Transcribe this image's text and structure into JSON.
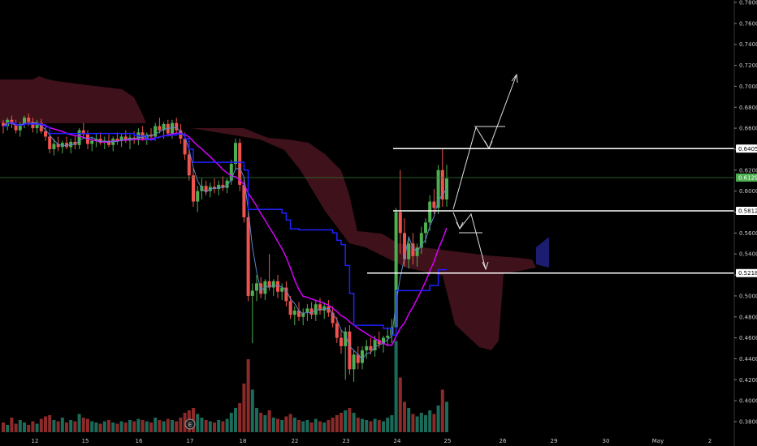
{
  "chart_data": {
    "type": "candlestick",
    "y_axis": {
      "ticks": [
        "0.7800",
        "0.7600",
        "0.7400",
        "0.7200",
        "0.7000",
        "0.6800",
        "0.6600",
        "0.6400",
        "0.6200",
        "0.6000",
        "0.5800",
        "0.5600",
        "0.5400",
        "0.5200",
        "0.5000",
        "0.4800",
        "0.4600",
        "0.4400",
        "0.4200",
        "0.4000",
        "0.3800"
      ],
      "ylim": [
        0.373,
        0.785
      ]
    },
    "x_axis": {
      "ticks": [
        "12",
        "15",
        "16",
        "17",
        "18",
        "22",
        "23",
        "24",
        "25",
        "26",
        "29",
        "30",
        "May",
        "2"
      ]
    },
    "price_tags": [
      {
        "label": "0.6405",
        "value": 0.6405,
        "bg": "#ffffff",
        "fg": "#000000"
      },
      {
        "label": "0.6129",
        "value": 0.6129,
        "bg": "#4caf50",
        "fg": "#ffffff"
      },
      {
        "label": "0.5812",
        "value": 0.5812,
        "bg": "#ffffff",
        "fg": "#000000"
      },
      {
        "label": "0.5218",
        "value": 0.5218,
        "bg": "#ffffff",
        "fg": "#000000"
      }
    ],
    "horizontal_levels": [
      0.6405,
      0.5812,
      0.5218
    ],
    "current_price": 0.6129,
    "event_marker": "E",
    "candles": [
      [
        0.665,
        0.668,
        0.655,
        0.662,
        0.008
      ],
      [
        0.662,
        0.67,
        0.658,
        0.668,
        0.006
      ],
      [
        0.668,
        0.672,
        0.66,
        0.664,
        0.012
      ],
      [
        0.664,
        0.668,
        0.655,
        0.658,
        0.007
      ],
      [
        0.658,
        0.666,
        0.652,
        0.664,
        0.01
      ],
      [
        0.664,
        0.672,
        0.66,
        0.67,
        0.008
      ],
      [
        0.67,
        0.674,
        0.662,
        0.666,
        0.006
      ],
      [
        0.666,
        0.67,
        0.656,
        0.66,
        0.009
      ],
      [
        0.66,
        0.668,
        0.655,
        0.665,
        0.007
      ],
      [
        0.665,
        0.669,
        0.655,
        0.657,
        0.011
      ],
      [
        0.657,
        0.662,
        0.648,
        0.652,
        0.013
      ],
      [
        0.652,
        0.656,
        0.636,
        0.64,
        0.014
      ],
      [
        0.64,
        0.65,
        0.634,
        0.645,
        0.01
      ],
      [
        0.645,
        0.652,
        0.638,
        0.642,
        0.009
      ],
      [
        0.642,
        0.648,
        0.636,
        0.646,
        0.012
      ],
      [
        0.646,
        0.652,
        0.64,
        0.642,
        0.008
      ],
      [
        0.642,
        0.65,
        0.636,
        0.647,
        0.01
      ],
      [
        0.647,
        0.653,
        0.64,
        0.644,
        0.009
      ],
      [
        0.644,
        0.66,
        0.64,
        0.658,
        0.015
      ],
      [
        0.658,
        0.665,
        0.65,
        0.654,
        0.012
      ],
      [
        0.654,
        0.658,
        0.64,
        0.645,
        0.011
      ],
      [
        0.645,
        0.652,
        0.638,
        0.648,
        0.009
      ],
      [
        0.648,
        0.655,
        0.642,
        0.65,
        0.008
      ],
      [
        0.65,
        0.656,
        0.644,
        0.646,
        0.007
      ],
      [
        0.646,
        0.652,
        0.64,
        0.648,
        0.009
      ],
      [
        0.648,
        0.654,
        0.642,
        0.644,
        0.01
      ],
      [
        0.644,
        0.652,
        0.638,
        0.65,
        0.008
      ],
      [
        0.65,
        0.656,
        0.644,
        0.648,
        0.007
      ],
      [
        0.648,
        0.655,
        0.642,
        0.652,
        0.009
      ],
      [
        0.652,
        0.658,
        0.646,
        0.648,
        0.008
      ],
      [
        0.648,
        0.654,
        0.64,
        0.651,
        0.01
      ],
      [
        0.651,
        0.657,
        0.645,
        0.649,
        0.009
      ],
      [
        0.649,
        0.66,
        0.644,
        0.656,
        0.011
      ],
      [
        0.656,
        0.662,
        0.648,
        0.65,
        0.01
      ],
      [
        0.65,
        0.656,
        0.644,
        0.654,
        0.009
      ],
      [
        0.654,
        0.66,
        0.648,
        0.652,
        0.008
      ],
      [
        0.652,
        0.665,
        0.648,
        0.662,
        0.012
      ],
      [
        0.662,
        0.67,
        0.655,
        0.658,
        0.01
      ],
      [
        0.658,
        0.666,
        0.65,
        0.664,
        0.009
      ],
      [
        0.664,
        0.668,
        0.652,
        0.655,
        0.011
      ],
      [
        0.655,
        0.668,
        0.65,
        0.665,
        0.01
      ],
      [
        0.665,
        0.67,
        0.654,
        0.658,
        0.009
      ],
      [
        0.658,
        0.664,
        0.645,
        0.65,
        0.012
      ],
      [
        0.65,
        0.656,
        0.63,
        0.635,
        0.016
      ],
      [
        0.635,
        0.642,
        0.61,
        0.615,
        0.018
      ],
      [
        0.615,
        0.622,
        0.585,
        0.59,
        0.02
      ],
      [
        0.59,
        0.605,
        0.58,
        0.6,
        0.015
      ],
      [
        0.6,
        0.612,
        0.592,
        0.605,
        0.012
      ],
      [
        0.605,
        0.61,
        0.596,
        0.6,
        0.01
      ],
      [
        0.6,
        0.608,
        0.594,
        0.604,
        0.009
      ],
      [
        0.604,
        0.612,
        0.598,
        0.602,
        0.008
      ],
      [
        0.602,
        0.61,
        0.596,
        0.606,
        0.01
      ],
      [
        0.606,
        0.614,
        0.6,
        0.603,
        0.009
      ],
      [
        0.603,
        0.612,
        0.598,
        0.61,
        0.011
      ],
      [
        0.61,
        0.63,
        0.606,
        0.626,
        0.016
      ],
      [
        0.626,
        0.65,
        0.62,
        0.646,
        0.02
      ],
      [
        0.646,
        0.65,
        0.6,
        0.606,
        0.024
      ],
      [
        0.606,
        0.612,
        0.57,
        0.575,
        0.04
      ],
      [
        0.575,
        0.58,
        0.495,
        0.5,
        0.06
      ],
      [
        0.5,
        0.512,
        0.455,
        0.505,
        0.035
      ],
      [
        0.505,
        0.52,
        0.495,
        0.512,
        0.02
      ],
      [
        0.512,
        0.518,
        0.498,
        0.502,
        0.016
      ],
      [
        0.502,
        0.516,
        0.496,
        0.514,
        0.014
      ],
      [
        0.514,
        0.54,
        0.505,
        0.508,
        0.018
      ],
      [
        0.508,
        0.516,
        0.5,
        0.514,
        0.012
      ],
      [
        0.514,
        0.52,
        0.498,
        0.504,
        0.011
      ],
      [
        0.504,
        0.512,
        0.496,
        0.508,
        0.01
      ],
      [
        0.508,
        0.514,
        0.49,
        0.495,
        0.013
      ],
      [
        0.495,
        0.5,
        0.478,
        0.482,
        0.015
      ],
      [
        0.482,
        0.49,
        0.472,
        0.486,
        0.012
      ],
      [
        0.486,
        0.494,
        0.476,
        0.48,
        0.01
      ],
      [
        0.48,
        0.488,
        0.472,
        0.484,
        0.009
      ],
      [
        0.484,
        0.492,
        0.476,
        0.488,
        0.01
      ],
      [
        0.488,
        0.494,
        0.478,
        0.482,
        0.008
      ],
      [
        0.482,
        0.496,
        0.476,
        0.492,
        0.011
      ],
      [
        0.492,
        0.498,
        0.482,
        0.486,
        0.009
      ],
      [
        0.486,
        0.494,
        0.478,
        0.49,
        0.008
      ],
      [
        0.49,
        0.496,
        0.48,
        0.484,
        0.01
      ],
      [
        0.484,
        0.49,
        0.47,
        0.474,
        0.012
      ],
      [
        0.474,
        0.48,
        0.455,
        0.46,
        0.014
      ],
      [
        0.46,
        0.468,
        0.445,
        0.452,
        0.016
      ],
      [
        0.452,
        0.47,
        0.42,
        0.466,
        0.018
      ],
      [
        0.466,
        0.472,
        0.425,
        0.43,
        0.02
      ],
      [
        0.43,
        0.448,
        0.418,
        0.444,
        0.016
      ],
      [
        0.444,
        0.452,
        0.43,
        0.436,
        0.012
      ],
      [
        0.436,
        0.452,
        0.43,
        0.448,
        0.011
      ],
      [
        0.448,
        0.458,
        0.44,
        0.452,
        0.01
      ],
      [
        0.452,
        0.46,
        0.444,
        0.448,
        0.009
      ],
      [
        0.448,
        0.462,
        0.442,
        0.458,
        0.011
      ],
      [
        0.458,
        0.466,
        0.45,
        0.454,
        0.01
      ],
      [
        0.454,
        0.462,
        0.446,
        0.46,
        0.009
      ],
      [
        0.46,
        0.47,
        0.452,
        0.462,
        0.012
      ],
      [
        0.462,
        0.478,
        0.455,
        0.47,
        0.014
      ],
      [
        0.47,
        0.584,
        0.465,
        0.58,
        0.075
      ],
      [
        0.58,
        0.62,
        0.54,
        0.56,
        0.045
      ],
      [
        0.56,
        0.574,
        0.528,
        0.535,
        0.025
      ],
      [
        0.535,
        0.556,
        0.526,
        0.55,
        0.02
      ],
      [
        0.55,
        0.56,
        0.53,
        0.538,
        0.015
      ],
      [
        0.538,
        0.55,
        0.528,
        0.546,
        0.013
      ],
      [
        0.546,
        0.566,
        0.54,
        0.56,
        0.016
      ],
      [
        0.56,
        0.574,
        0.55,
        0.57,
        0.014
      ],
      [
        0.57,
        0.596,
        0.562,
        0.59,
        0.018
      ],
      [
        0.59,
        0.602,
        0.578,
        0.584,
        0.015
      ],
      [
        0.584,
        0.625,
        0.578,
        0.62,
        0.022
      ],
      [
        0.62,
        0.64,
        0.585,
        0.592,
        0.035
      ],
      [
        0.592,
        0.625,
        0.585,
        0.612,
        0.025
      ]
    ]
  }
}
